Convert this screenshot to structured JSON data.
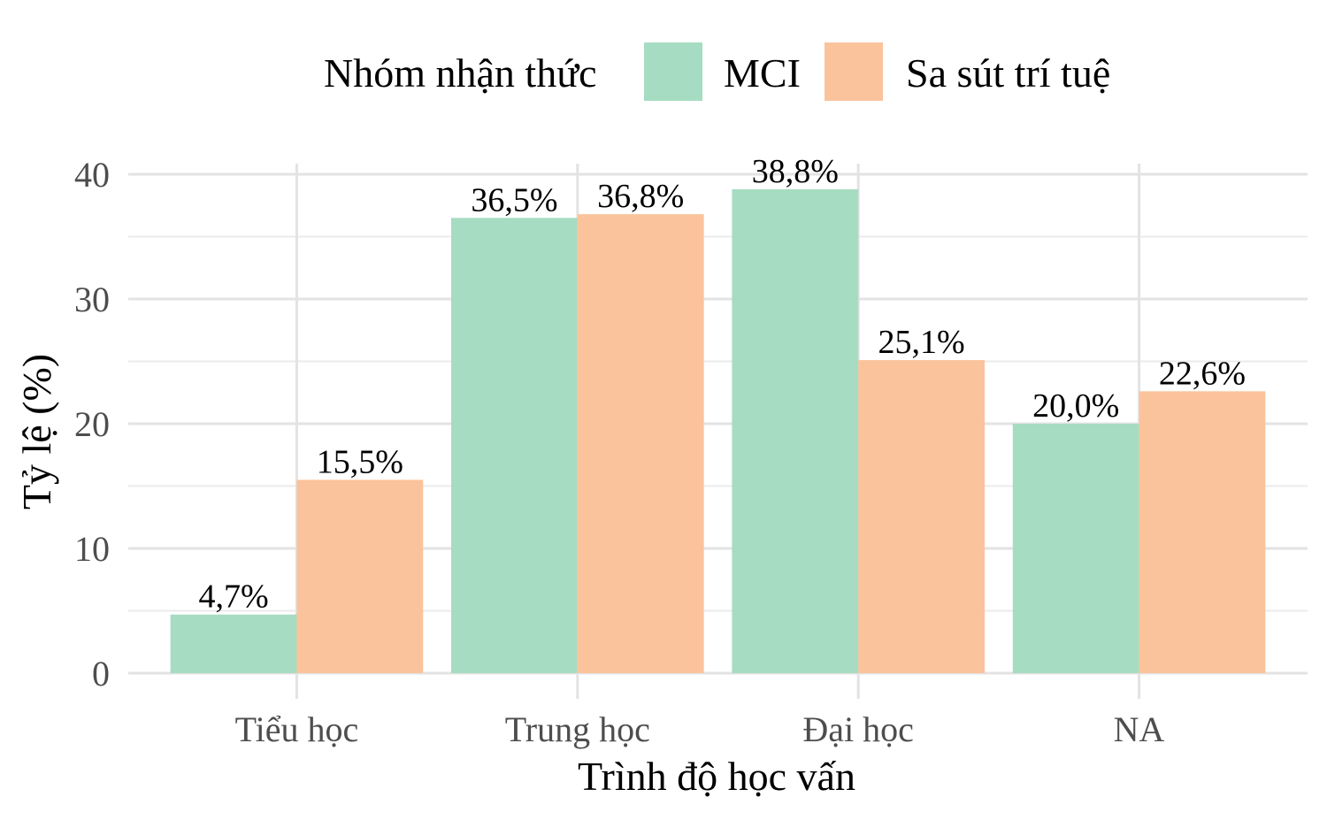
{
  "chart_data": {
    "type": "bar",
    "categories": [
      "Tiểu học",
      "Trung học",
      "Đại học",
      "NA"
    ],
    "series": [
      {
        "name": "MCI",
        "values": [
          4.7,
          36.5,
          38.8,
          20.0
        ],
        "labels": [
          "4,7%",
          "36,5%",
          "38,8%",
          "20,0%"
        ],
        "color": "#a6dcc2"
      },
      {
        "name": "Sa sút trí tuệ",
        "values": [
          15.5,
          36.8,
          25.1,
          22.6
        ],
        "labels": [
          "15,5%",
          "36,8%",
          "25,1%",
          "22,6%"
        ],
        "color": "#fbc39c"
      }
    ],
    "xlabel": "Trình độ học vấn",
    "ylabel": "Tỷ lệ (%)",
    "ylim": [
      0,
      40
    ],
    "yticks": [
      0,
      10,
      20,
      30,
      40
    ],
    "legend_title": "Nhóm nhận thức",
    "legend_position": "top",
    "grid": true
  }
}
